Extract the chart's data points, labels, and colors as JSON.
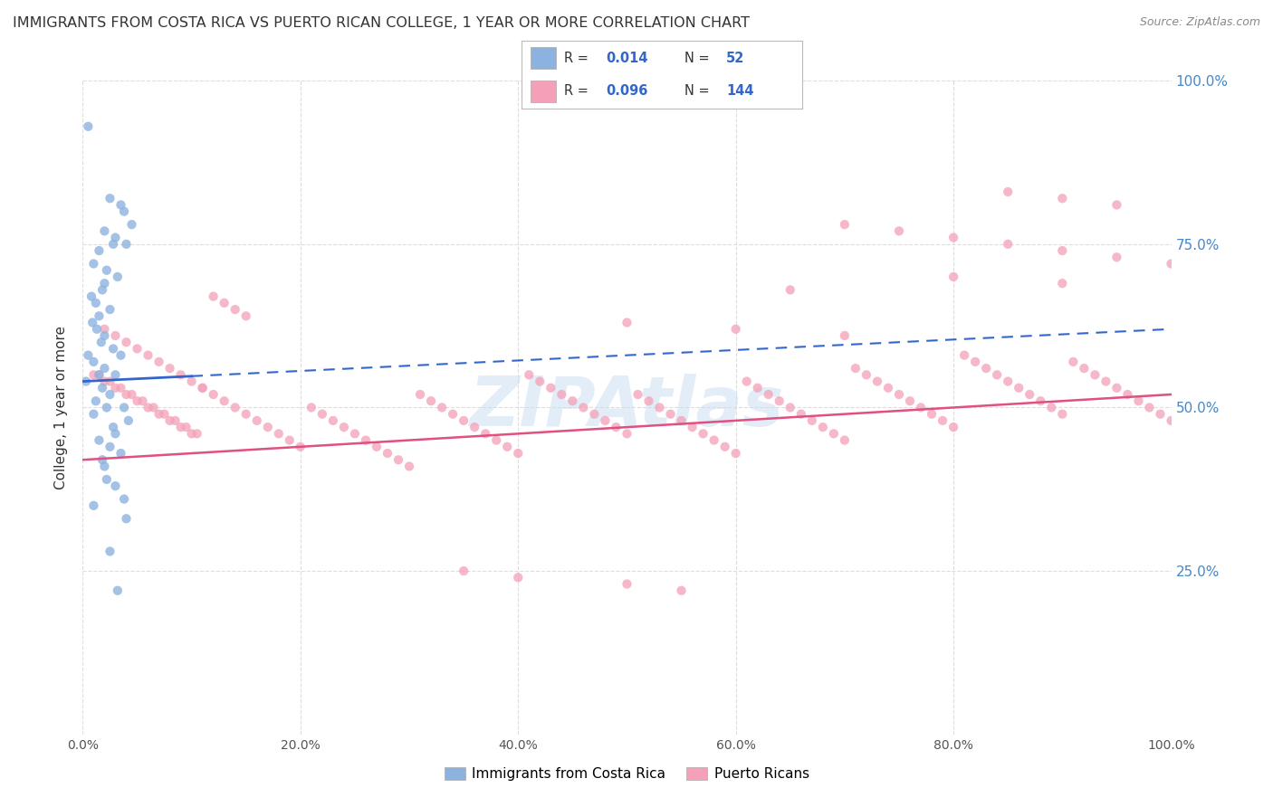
{
  "title": "IMMIGRANTS FROM COSTA RICA VS PUERTO RICAN COLLEGE, 1 YEAR OR MORE CORRELATION CHART",
  "source": "Source: ZipAtlas.com",
  "ylabel": "College, 1 year or more",
  "r_blue": 0.014,
  "n_blue": 52,
  "r_pink": 0.096,
  "n_pink": 144,
  "blue_color": "#8cb3e0",
  "pink_color": "#f4a0b8",
  "blue_line_color": "#3366cc",
  "pink_line_color": "#e05080",
  "legend_blue_label": "Immigrants from Costa Rica",
  "legend_pink_label": "Puerto Ricans",
  "blue_x": [
    0.5,
    2.5,
    3.5,
    3.8,
    4.5,
    2.0,
    3.0,
    4.0,
    2.8,
    1.5,
    1.0,
    2.2,
    3.2,
    2.0,
    1.8,
    0.8,
    1.2,
    2.5,
    1.5,
    0.9,
    1.3,
    2.0,
    1.7,
    2.8,
    3.5,
    0.5,
    1.0,
    2.0,
    3.0,
    1.5,
    0.3,
    1.8,
    2.5,
    1.2,
    3.8,
    2.2,
    1.0,
    4.2,
    2.8,
    3.0,
    1.5,
    2.5,
    3.5,
    1.8,
    2.0,
    2.2,
    3.0,
    3.8,
    1.0,
    4.0,
    2.5,
    3.2
  ],
  "blue_y": [
    93,
    82,
    81,
    80,
    78,
    77,
    76,
    75,
    75,
    74,
    72,
    71,
    70,
    69,
    68,
    67,
    66,
    65,
    64,
    63,
    62,
    61,
    60,
    59,
    58,
    58,
    57,
    56,
    55,
    55,
    54,
    53,
    52,
    51,
    50,
    50,
    49,
    48,
    47,
    46,
    45,
    44,
    43,
    42,
    41,
    39,
    38,
    36,
    35,
    33,
    28,
    22
  ],
  "pink_x": [
    1.0,
    2.0,
    3.0,
    4.0,
    5.0,
    6.0,
    7.0,
    8.0,
    9.0,
    10.0,
    1.5,
    2.5,
    3.5,
    4.5,
    5.5,
    6.5,
    7.5,
    8.5,
    9.5,
    10.5,
    11.0,
    12.0,
    13.0,
    14.0,
    15.0,
    16.0,
    17.0,
    18.0,
    19.0,
    20.0,
    21.0,
    22.0,
    23.0,
    24.0,
    25.0,
    26.0,
    27.0,
    28.0,
    29.0,
    30.0,
    31.0,
    32.0,
    33.0,
    34.0,
    35.0,
    36.0,
    37.0,
    38.0,
    39.0,
    40.0,
    41.0,
    42.0,
    43.0,
    44.0,
    45.0,
    46.0,
    47.0,
    48.0,
    49.0,
    50.0,
    51.0,
    52.0,
    53.0,
    54.0,
    55.0,
    56.0,
    57.0,
    58.0,
    59.0,
    60.0,
    61.0,
    62.0,
    63.0,
    64.0,
    65.0,
    66.0,
    67.0,
    68.0,
    69.0,
    70.0,
    71.0,
    72.0,
    73.0,
    74.0,
    75.0,
    76.0,
    77.0,
    78.0,
    79.0,
    80.0,
    81.0,
    82.0,
    83.0,
    84.0,
    85.0,
    86.0,
    87.0,
    88.0,
    89.0,
    90.0,
    91.0,
    92.0,
    93.0,
    94.0,
    95.0,
    96.0,
    97.0,
    98.0,
    99.0,
    100.0,
    2.0,
    3.0,
    4.0,
    5.0,
    6.0,
    7.0,
    8.0,
    9.0,
    10.0,
    11.0,
    12.0,
    13.0,
    14.0,
    15.0,
    50.0,
    60.0,
    70.0,
    80.0,
    90.0,
    65.0,
    70.0,
    75.0,
    80.0,
    85.0,
    90.0,
    95.0,
    100.0,
    85.0,
    90.0,
    95.0,
    35.0,
    40.0,
    50.0,
    55.0
  ],
  "pink_y": [
    55,
    54,
    53,
    52,
    51,
    50,
    49,
    48,
    47,
    46,
    55,
    54,
    53,
    52,
    51,
    50,
    49,
    48,
    47,
    46,
    53,
    52,
    51,
    50,
    49,
    48,
    47,
    46,
    45,
    44,
    50,
    49,
    48,
    47,
    46,
    45,
    44,
    43,
    42,
    41,
    52,
    51,
    50,
    49,
    48,
    47,
    46,
    45,
    44,
    43,
    55,
    54,
    53,
    52,
    51,
    50,
    49,
    48,
    47,
    46,
    52,
    51,
    50,
    49,
    48,
    47,
    46,
    45,
    44,
    43,
    54,
    53,
    52,
    51,
    50,
    49,
    48,
    47,
    46,
    45,
    56,
    55,
    54,
    53,
    52,
    51,
    50,
    49,
    48,
    47,
    58,
    57,
    56,
    55,
    54,
    53,
    52,
    51,
    50,
    49,
    57,
    56,
    55,
    54,
    53,
    52,
    51,
    50,
    49,
    48,
    62,
    61,
    60,
    59,
    58,
    57,
    56,
    55,
    54,
    53,
    67,
    66,
    65,
    64,
    63,
    62,
    61,
    70,
    69,
    68,
    78,
    77,
    76,
    75,
    74,
    73,
    72,
    83,
    82,
    81,
    25,
    24,
    23,
    22
  ],
  "blue_trend": [
    0,
    100,
    54,
    62
  ],
  "blue_trend_solid_end": 10,
  "pink_trend": [
    0,
    100,
    42,
    52
  ],
  "xlim": [
    0,
    100
  ],
  "ylim": [
    0,
    100
  ],
  "background_color": "#ffffff",
  "grid_color": "#dddddd",
  "title_color": "#333333",
  "right_tick_color": "#4488cc",
  "watermark": "ZIPAtlas",
  "watermark_color": "#c8ddf0"
}
